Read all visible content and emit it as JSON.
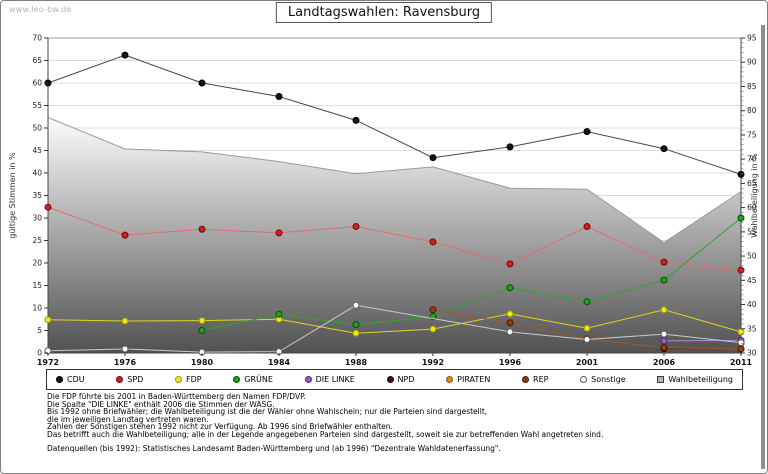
{
  "watermark": "www.leo-bw.de",
  "title": "Landtagswahlen: Ravensburg",
  "chart_data": {
    "type": "line",
    "title": "Landtagswahlen: Ravensburg",
    "x": [
      1972,
      1976,
      1980,
      1984,
      1988,
      1992,
      1996,
      2001,
      2006,
      2011
    ],
    "left_axis": {
      "label": "gültige Stimmen in %",
      "min": 0,
      "max": 70,
      "step": 5
    },
    "right_axis": {
      "label": "Wahlbeteiligung in %",
      "min": 30,
      "max": 95,
      "step": 5,
      "minor_step": 1
    },
    "grid": "horizontal",
    "legend_position": "bottom",
    "series": [
      {
        "name": "CDU",
        "axis": "left",
        "color": "#141414",
        "edge": "#000000",
        "line": "#474747",
        "values": [
          60.0,
          66.2,
          60.0,
          57.0,
          51.7,
          43.4,
          45.8,
          49.2,
          45.4,
          39.7
        ]
      },
      {
        "name": "SPD",
        "axis": "left",
        "color": "#d01f1f",
        "edge": "#6e0a0a",
        "line": "#e46a6a",
        "values": [
          32.4,
          26.2,
          27.5,
          26.7,
          28.1,
          24.7,
          19.8,
          28.1,
          20.2,
          18.4
        ]
      },
      {
        "name": "FDP",
        "axis": "left",
        "color": "#efe719",
        "edge": "#99920a",
        "line": "#ddd61e",
        "values": [
          7.4,
          7.1,
          7.2,
          7.5,
          4.4,
          5.3,
          8.7,
          5.5,
          9.6,
          4.7
        ]
      },
      {
        "name": "GRÜNE",
        "axis": "left",
        "color": "#1ea21e",
        "edge": "#0a4f0a",
        "line": "#2da52d",
        "values": [
          null,
          null,
          5.0,
          8.6,
          6.3,
          8.1,
          14.5,
          11.4,
          16.2,
          30.0
        ]
      },
      {
        "name": "DIE LINKE",
        "axis": "left",
        "color": "#9b59c8",
        "edge": "#4f2470",
        "line": "#b489d6",
        "values": [
          null,
          null,
          null,
          null,
          null,
          null,
          null,
          null,
          2.7,
          2.8
        ]
      },
      {
        "name": "NPD",
        "axis": "left",
        "color": "#461010",
        "edge": "#1f0404",
        "line": "#5a2a2a",
        "values": [
          null,
          null,
          null,
          null,
          null,
          null,
          null,
          null,
          1.0,
          0.9
        ]
      },
      {
        "name": "PIRATEN",
        "axis": "left",
        "color": "#e48a20",
        "edge": "#8a5005",
        "line": "#e8a050",
        "values": [
          null,
          null,
          null,
          null,
          null,
          null,
          null,
          null,
          null,
          2.1
        ]
      },
      {
        "name": "REP",
        "axis": "left",
        "color": "#8f3f10",
        "edge": "#451c02",
        "line": "#a05a28",
        "values": [
          null,
          null,
          null,
          null,
          null,
          9.6,
          6.7,
          3.1,
          1.2,
          0.9
        ]
      },
      {
        "name": "Sonstige",
        "axis": "left",
        "color": "#fdfdfd",
        "edge": "#5a5a5a",
        "line": "#c9c9c9",
        "values": [
          0.5,
          0.9,
          0.2,
          0.3,
          10.6,
          null,
          4.7,
          3.0,
          4.2,
          2.3
        ]
      }
    ],
    "turnout": {
      "name": "Wahlbeteiligung",
      "axis": "right",
      "style": "area",
      "edge": "#9a9a9a",
      "gradient": [
        "#fcfcfc",
        "#515151"
      ],
      "legend_fill": "#b2b2b2",
      "values": [
        78.6,
        72.1,
        71.5,
        69.5,
        67.0,
        68.4,
        64.0,
        63.8,
        52.8,
        63.3
      ]
    }
  },
  "footnotes": [
    "Die FDP führte bis 2001 in Baden-Württemberg den Namen FDP/DVP.",
    "Die Spalte \"DIE LINKE\" enthält 2006 die Stimmen der WASG.",
    "Bis 1992 ohne Briefwähler; die Wahlbeteiligung ist die der Wähler ohne Wahlschein; nur die Parteien sind dargestellt,",
    "die im jeweiligen Landtag vertreten waren.",
    "Zahlen der Sonstigen stehen 1992 nicht zur Verfügung. Ab 1996 sind Briefwähler enthalten.",
    "Das betrifft auch die Wahlbeteiligung; alle in der Legende angegebenen Parteien sind dargestellt, soweit sie zur betreffenden Wahl angetreten sind."
  ],
  "source_note": "Datenquellen (bis 1992): Statistisches Landesamt Baden-Württemberg und (ab 1996) \"Dezentrale Wahldatenerfassung\"."
}
